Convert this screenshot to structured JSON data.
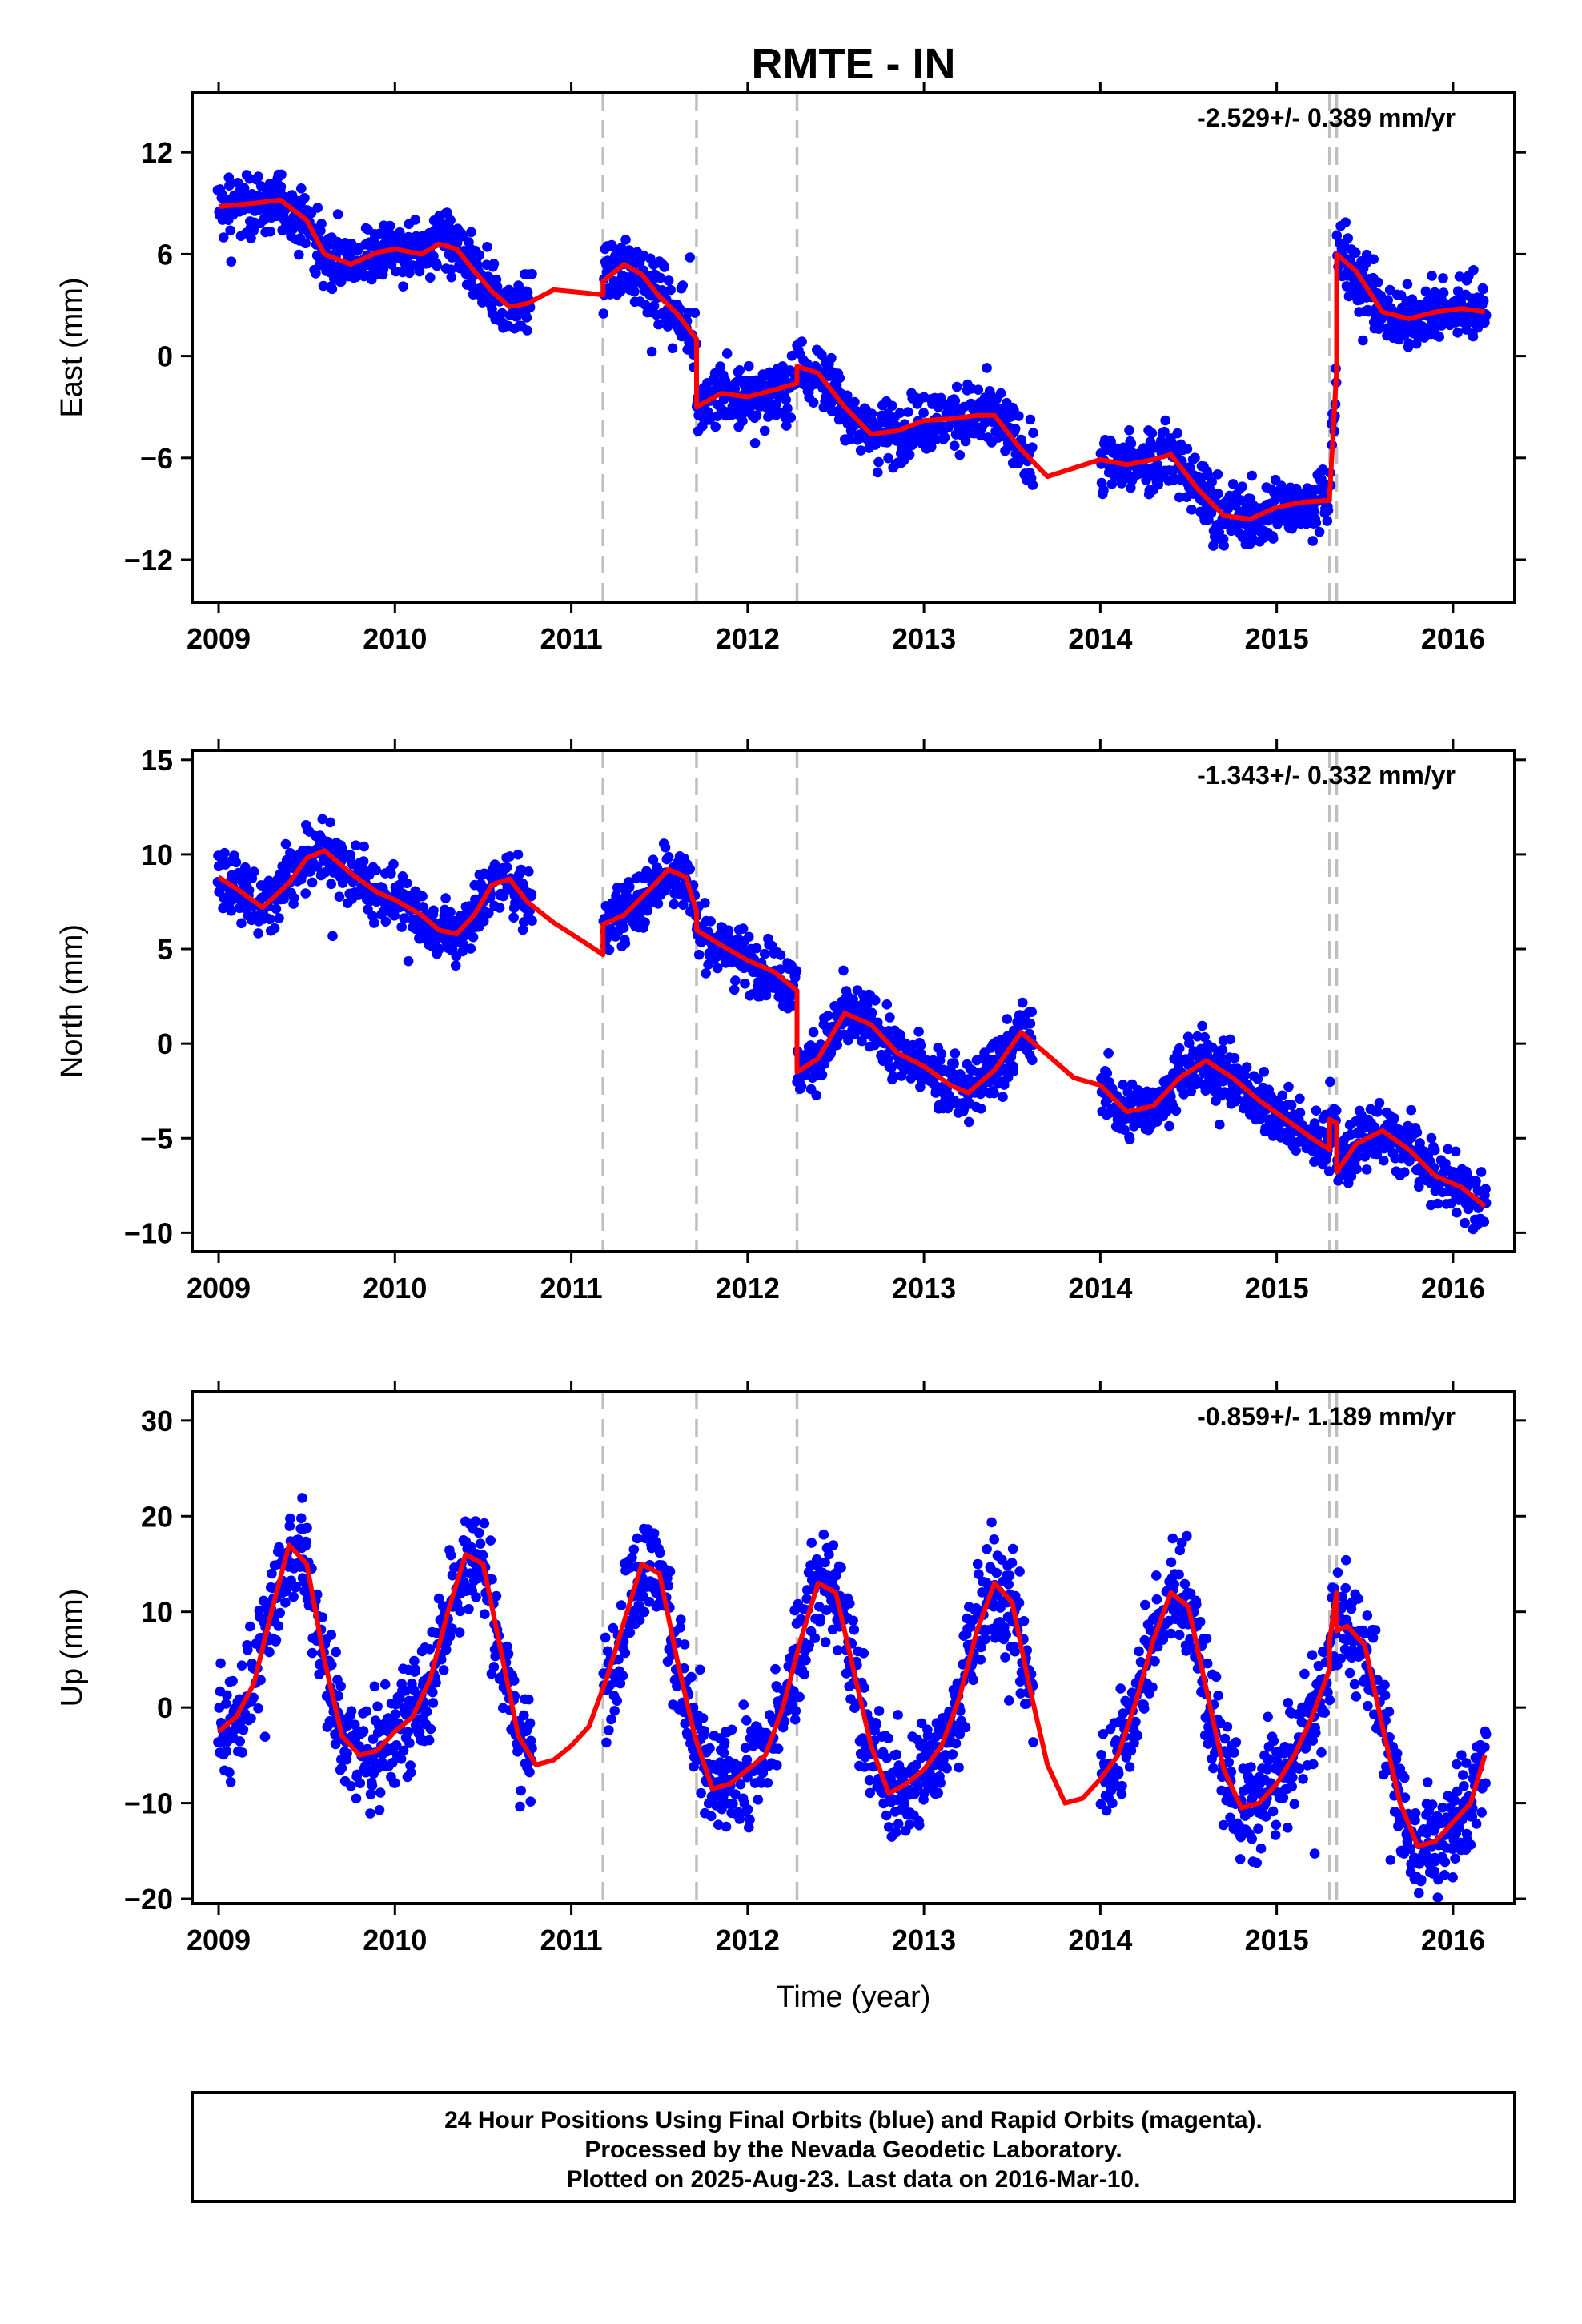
{
  "chart_data": {
    "title": "RMTE - IN",
    "xlabel": "Time (year)",
    "footer": [
      "24 Hour Positions Using Final Orbits (blue) and Rapid Orbits (magenta).",
      "Processed by the Nevada Geodetic Laboratory.",
      "Plotted on 2025-Aug-23. Last data on 2016-Mar-10."
    ],
    "colors": {
      "data": "#0000ff",
      "model": "#ff0000",
      "steps": "#bfbfbf"
    },
    "step_epochs": [
      2011.18,
      2011.71,
      2012.28,
      2015.3,
      2015.34
    ],
    "panels": [
      {
        "type": "scatter",
        "ylabel": "East (mm)",
        "rate": "-2.529+/- 0.389 mm/yr",
        "xlim": [
          2008.85,
          2016.35
        ],
        "ylim": [
          -14.5,
          15.5
        ],
        "xticks": [
          2009,
          2010,
          2011,
          2012,
          2013,
          2014,
          2015,
          2016
        ],
        "yticks": [
          12,
          6,
          0,
          -6,
          -12
        ],
        "ytick_labels": [
          "12",
          "6",
          "0",
          "−6",
          "−12"
        ],
        "model": {
          "x": [
            2009.0,
            2009.2,
            2009.35,
            2009.5,
            2009.6,
            2009.75,
            2009.9,
            2010.0,
            2010.15,
            2010.25,
            2010.35,
            2010.45,
            2010.55,
            2010.65,
            2010.75,
            2010.9,
            2011.0,
            2011.1,
            2011.18,
            2011.18,
            2011.3,
            2011.4,
            2011.5,
            2011.6,
            2011.71,
            2011.71,
            2011.85,
            2012.0,
            2012.15,
            2012.28,
            2012.28,
            2012.4,
            2012.55,
            2012.7,
            2012.85,
            2013.0,
            2013.15,
            2013.3,
            2013.4,
            2013.55,
            2013.7,
            2013.85,
            2014.0,
            2014.15,
            2014.3,
            2014.4,
            2014.55,
            2014.7,
            2014.85,
            2015.0,
            2015.15,
            2015.3,
            2015.3,
            2015.34,
            2015.34,
            2015.45,
            2015.6,
            2015.75,
            2015.9,
            2016.05,
            2016.18
          ],
          "y": [
            8.8,
            9.0,
            9.2,
            8.0,
            6.0,
            5.4,
            6.1,
            6.3,
            6.0,
            6.6,
            6.3,
            5.0,
            3.8,
            2.9,
            3.1,
            3.9,
            3.8,
            3.7,
            3.6,
            4.4,
            5.4,
            4.8,
            3.5,
            2.5,
            1.0,
            -3.0,
            -2.2,
            -2.4,
            -2.0,
            -1.6,
            -0.6,
            -1.0,
            -3.0,
            -4.6,
            -4.4,
            -3.8,
            -3.7,
            -3.5,
            -3.5,
            -5.5,
            -7.1,
            -6.6,
            -6.1,
            -6.4,
            -6.1,
            -5.8,
            -7.8,
            -9.4,
            -9.6,
            -8.9,
            -8.6,
            -8.5,
            -8.3,
            -0.8,
            6.0,
            5.0,
            2.6,
            2.2,
            2.6,
            2.8,
            2.6
          ]
        }
      },
      {
        "type": "scatter",
        "ylabel": "North (mm)",
        "rate": "-1.343+/- 0.332 mm/yr",
        "xlim": [
          2008.85,
          2016.35
        ],
        "ylim": [
          -11.0,
          15.5
        ],
        "xticks": [
          2009,
          2010,
          2011,
          2012,
          2013,
          2014,
          2015,
          2016
        ],
        "yticks": [
          15,
          10,
          5,
          0,
          -5,
          -10
        ],
        "ytick_labels": [
          "15",
          "10",
          "5",
          "0",
          "−5",
          "−10"
        ],
        "model": {
          "x": [
            2009.0,
            2009.1,
            2009.25,
            2009.4,
            2009.5,
            2009.6,
            2009.75,
            2009.9,
            2010.0,
            2010.15,
            2010.25,
            2010.35,
            2010.45,
            2010.55,
            2010.65,
            2010.75,
            2010.9,
            2011.0,
            2011.1,
            2011.18,
            2011.18,
            2011.3,
            2011.45,
            2011.55,
            2011.65,
            2011.71,
            2011.71,
            2011.85,
            2012.0,
            2012.15,
            2012.28,
            2012.28,
            2012.4,
            2012.55,
            2012.7,
            2012.85,
            2013.0,
            2013.15,
            2013.25,
            2013.4,
            2013.55,
            2013.7,
            2013.85,
            2014.0,
            2014.15,
            2014.3,
            2014.45,
            2014.6,
            2014.75,
            2014.9,
            2015.05,
            2015.2,
            2015.3,
            2015.3,
            2015.34,
            2015.34,
            2015.45,
            2015.6,
            2015.75,
            2015.9,
            2016.05,
            2016.18
          ],
          "y": [
            8.8,
            8.2,
            7.2,
            8.5,
            9.8,
            10.2,
            9.0,
            8.0,
            7.6,
            6.8,
            6.0,
            5.8,
            6.8,
            8.4,
            8.7,
            7.5,
            6.4,
            5.8,
            5.2,
            4.7,
            6.3,
            6.8,
            8.2,
            9.2,
            8.8,
            7.0,
            6.0,
            5.2,
            4.4,
            3.8,
            2.8,
            -1.5,
            -0.8,
            1.6,
            1.0,
            -0.5,
            -1.2,
            -2.2,
            -2.6,
            -1.4,
            0.6,
            -0.6,
            -1.8,
            -2.2,
            -3.6,
            -3.3,
            -1.8,
            -0.9,
            -1.8,
            -3.0,
            -4.0,
            -5.0,
            -5.6,
            -4.0,
            -4.2,
            -6.8,
            -5.3,
            -4.6,
            -5.6,
            -7.0,
            -7.6,
            -8.6
          ]
        }
      },
      {
        "type": "scatter",
        "ylabel": "Up (mm)",
        "rate": "-0.859+/- 1.189 mm/yr",
        "xlim": [
          2008.85,
          2016.35
        ],
        "ylim": [
          -20.5,
          33.0
        ],
        "xticks": [
          2009,
          2010,
          2011,
          2012,
          2013,
          2014,
          2015,
          2016
        ],
        "yticks": [
          30,
          20,
          10,
          0,
          -10,
          -20
        ],
        "ytick_labels": [
          "30",
          "20",
          "10",
          "0",
          "−10",
          "−20"
        ],
        "model": {
          "x": [
            2009.0,
            2009.1,
            2009.2,
            2009.3,
            2009.4,
            2009.5,
            2009.6,
            2009.7,
            2009.8,
            2009.9,
            2010.0,
            2010.1,
            2010.2,
            2010.3,
            2010.4,
            2010.5,
            2010.6,
            2010.7,
            2010.8,
            2010.9,
            2011.0,
            2011.1,
            2011.2,
            2011.3,
            2011.4,
            2011.5,
            2011.6,
            2011.7,
            2011.8,
            2011.9,
            2012.0,
            2012.1,
            2012.2,
            2012.3,
            2012.4,
            2012.5,
            2012.6,
            2012.7,
            2012.8,
            2012.9,
            2013.0,
            2013.1,
            2013.2,
            2013.3,
            2013.4,
            2013.5,
            2013.6,
            2013.7,
            2013.8,
            2013.9,
            2014.0,
            2014.1,
            2014.2,
            2014.3,
            2014.4,
            2014.5,
            2014.6,
            2014.7,
            2014.8,
            2014.9,
            2015.0,
            2015.1,
            2015.2,
            2015.3,
            2015.3,
            2015.34,
            2015.34,
            2015.4,
            2015.5,
            2015.6,
            2015.7,
            2015.8,
            2015.9,
            2016.0,
            2016.1,
            2016.18
          ],
          "y": [
            -2.5,
            -1.0,
            2.5,
            10.0,
            17.0,
            15.0,
            5.0,
            -3.0,
            -5.0,
            -4.5,
            -2.5,
            -1.0,
            3.0,
            10.0,
            16.0,
            15.0,
            6.0,
            -3.0,
            -6.0,
            -5.5,
            -4.0,
            -2.0,
            3.0,
            9.0,
            15.0,
            14.0,
            5.0,
            -3.0,
            -8.5,
            -8.0,
            -6.5,
            -5.0,
            0.0,
            7.0,
            13.0,
            12.0,
            4.0,
            -4.0,
            -9.0,
            -8.0,
            -6.5,
            -4.0,
            1.0,
            8.0,
            13.0,
            11.0,
            2.0,
            -6.0,
            -10.0,
            -9.5,
            -7.5,
            -5.0,
            0.5,
            7.0,
            12.0,
            10.5,
            2.0,
            -6.5,
            -10.5,
            -10.0,
            -8.0,
            -5.0,
            -1.0,
            4.0,
            7.0,
            12.0,
            8.0,
            8.5,
            6.5,
            -2.0,
            -10.0,
            -14.5,
            -14.0,
            -12.0,
            -10.0,
            -5.0
          ]
        }
      }
    ]
  }
}
